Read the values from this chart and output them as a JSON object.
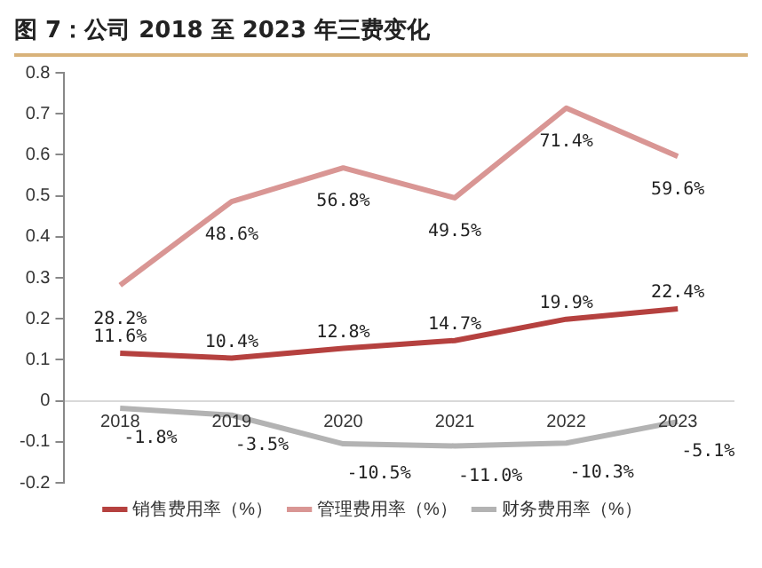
{
  "chart_data": {
    "type": "line",
    "title": "图 7：公司 2018 至 2023 年三费变化",
    "categories": [
      "2018",
      "2019",
      "2020",
      "2021",
      "2022",
      "2023"
    ],
    "series": [
      {
        "name": "销售费用率（%）",
        "color": "#b5413f",
        "values": [
          0.116,
          0.104,
          0.128,
          0.147,
          0.199,
          0.224
        ],
        "value_labels": [
          "11.6%",
          "10.4%",
          "12.8%",
          "14.7%",
          "19.9%",
          "22.4%"
        ]
      },
      {
        "name": "管理费用率（%）",
        "color": "#d99694",
        "values": [
          0.282,
          0.486,
          0.568,
          0.495,
          0.714,
          0.596
        ],
        "value_labels": [
          "28.2%",
          "48.6%",
          "56.8%",
          "49.5%",
          "71.4%",
          "59.6%"
        ]
      },
      {
        "name": "财务费用率（%）",
        "color": "#b3b3b3",
        "values": [
          -0.018,
          -0.035,
          -0.105,
          -0.11,
          -0.103,
          -0.051
        ],
        "value_labels": [
          "-1.8%",
          "-3.5%",
          "-10.5%",
          "-11.0%",
          "-10.3%",
          "-5.1%"
        ]
      }
    ],
    "ylim": [
      -0.2,
      0.8
    ],
    "yticks": [
      -0.2,
      -0.1,
      0,
      0.1,
      0.2,
      0.3,
      0.4,
      0.5,
      0.6,
      0.7,
      0.8
    ],
    "grid": false,
    "legend": "bottom",
    "marker": "none",
    "line_style": "solid"
  }
}
